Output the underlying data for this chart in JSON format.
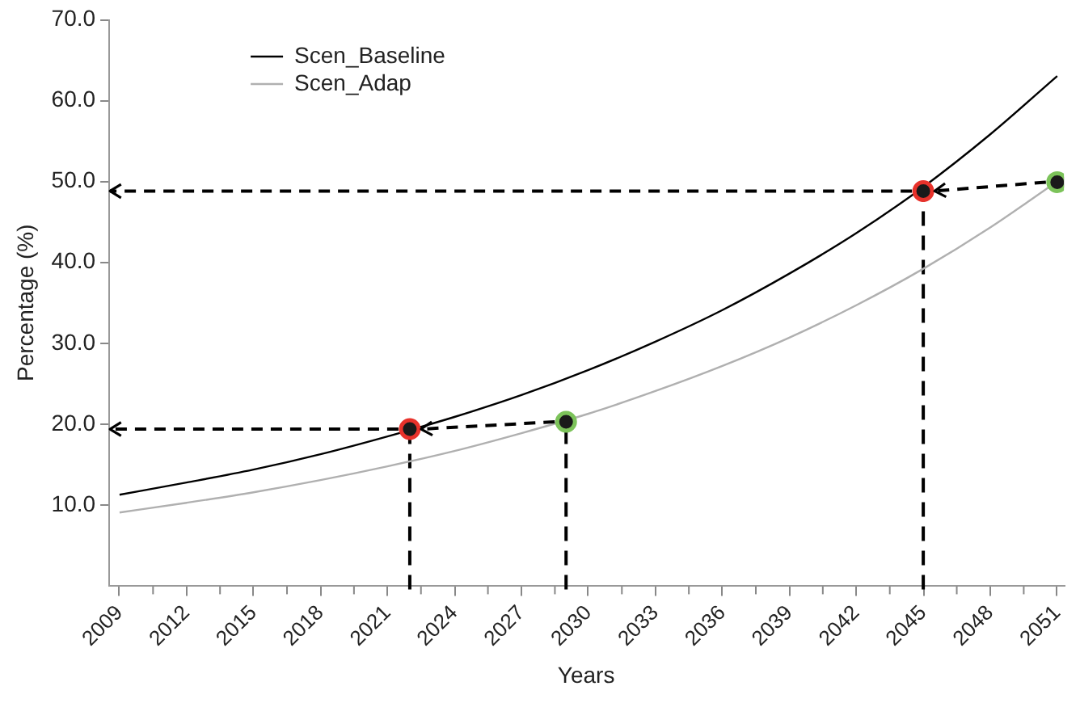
{
  "chart_data": {
    "type": "line",
    "xlabel": "Years",
    "ylabel": "Percentage (%)",
    "xlim": [
      2008.5,
      2051.3
    ],
    "xticks": [
      2009,
      2012,
      2015,
      2018,
      2021,
      2024,
      2027,
      2030,
      2033,
      2036,
      2039,
      2042,
      2045,
      2048,
      2051
    ],
    "ylim": [
      0,
      70
    ],
    "yticks": [
      {
        "value": 10,
        "label": "10.0"
      },
      {
        "value": 20,
        "label": "20.0"
      },
      {
        "value": 30,
        "label": "30.0"
      },
      {
        "value": 40,
        "label": "40.0"
      },
      {
        "value": 50,
        "label": "50.0"
      },
      {
        "value": 60,
        "label": "60.0"
      },
      {
        "value": 70,
        "label": "70.0"
      }
    ],
    "grid": false,
    "legend": "top left",
    "ref_lines": [
      {
        "axis": "x",
        "value": 2022,
        "color": "#000000",
        "line_style": "dashed"
      },
      {
        "axis": "x",
        "value": 2029,
        "color": "#000000",
        "line_style": "dashed"
      },
      {
        "axis": "x",
        "value": 2045,
        "color": "#000000",
        "line_style": "dashed"
      }
    ],
    "series": [
      {
        "name": "Scen_Baseline",
        "color": "#000000",
        "marker": "none",
        "x": [
          2009,
          2012,
          2015,
          2018,
          2021,
          2024,
          2027,
          2030,
          2033,
          2036,
          2039,
          2042,
          2045,
          2048,
          2051
        ],
        "values": [
          11.3,
          12.8,
          14.4,
          16.3,
          18.5,
          20.9,
          23.6,
          26.7,
          30.2,
          34.1,
          38.6,
          43.6,
          49.3,
          55.8,
          63.0
        ]
      },
      {
        "name": "Scen_Adap",
        "color": "#b0b0b0",
        "marker": "none",
        "x": [
          2009,
          2012,
          2015,
          2018,
          2021,
          2024,
          2027,
          2030,
          2033,
          2036,
          2039,
          2042,
          2045,
          2048,
          2051
        ],
        "values": [
          9.1,
          10.3,
          11.6,
          13.1,
          14.8,
          16.7,
          18.9,
          21.3,
          24.1,
          27.2,
          30.7,
          34.7,
          39.2,
          44.3,
          50.0
        ]
      },
      {
        "type": "scatter",
        "color": "#e8322b",
        "marker": "circle",
        "x": [
          2022,
          2045
        ],
        "values": [
          19.4,
          48.8
        ]
      },
      {
        "type": "scatter",
        "color": "#7cc35a",
        "marker": "circle",
        "x": [
          2029,
          2051
        ],
        "values": [
          20.3,
          49.9
        ]
      }
    ]
  }
}
